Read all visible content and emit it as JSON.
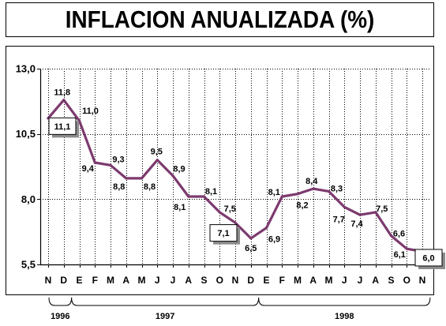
{
  "chart_data": {
    "type": "line",
    "title": "INFLACION ANUALIZADA (%)",
    "categories": [
      "N",
      "D",
      "E",
      "F",
      "M",
      "A",
      "M",
      "J",
      "J",
      "A",
      "S",
      "O",
      "N",
      "D",
      "E",
      "F",
      "M",
      "A",
      "M",
      "J",
      "J",
      "A",
      "S",
      "O",
      "N"
    ],
    "series": [
      {
        "values": [
          11.1,
          11.8,
          11.0,
          9.4,
          9.3,
          8.8,
          8.8,
          9.5,
          8.9,
          8.1,
          8.1,
          7.5,
          7.1,
          6.5,
          6.9,
          8.1,
          8.2,
          8.4,
          8.3,
          7.7,
          7.4,
          7.5,
          6.6,
          6.1,
          6.0
        ],
        "data_labels": [
          "11,1",
          "11,8",
          "11,0",
          "9,4",
          "9,3",
          "8,8",
          "8,8",
          "9,5",
          "8,9",
          "8,1",
          "8,1",
          "7,5",
          "7,1",
          "6,5",
          "6,9",
          "8,1",
          "8,2",
          "8,4",
          "8,3",
          "7,7",
          "7,4",
          "7,5",
          "6,6",
          "6,1",
          "6,0"
        ],
        "color": "#7C3A6E"
      }
    ],
    "y_ticks": [
      13.0,
      10.5,
      8.0,
      5.5
    ],
    "y_tick_labels": [
      "13,0",
      "10,5",
      "8,0",
      "5,5"
    ],
    "ylim": [
      5.5,
      13.0
    ],
    "grid": true,
    "years": [
      {
        "label": "1996",
        "from": 0,
        "to": 1
      },
      {
        "label": "1997",
        "from": 2,
        "to": 13
      },
      {
        "label": "1998",
        "from": 14,
        "to": 24
      }
    ]
  }
}
